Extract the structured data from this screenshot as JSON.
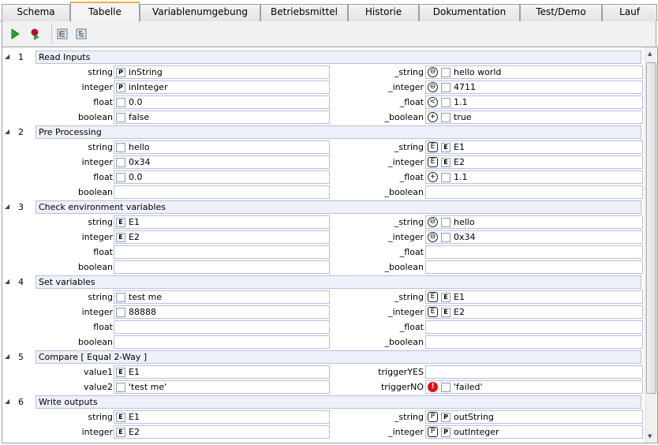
{
  "tabs": [
    {
      "label": "Schema"
    },
    {
      "label": "Tabelle",
      "selected": true
    },
    {
      "label": "Variablenumgebung"
    },
    {
      "label": "Betriebsmittel"
    },
    {
      "label": "Historie"
    },
    {
      "label": "Dokumentation"
    },
    {
      "label": "Test/Demo"
    },
    {
      "label": "Lauf"
    }
  ],
  "toolbar": {
    "icons": [
      "run-icon",
      "debug-icon",
      "expand-all-icon",
      "collapse-all-icon"
    ]
  },
  "colors": {
    "group_header_bg": "#eef0fa",
    "field_border": "#b8c0dc",
    "selected_tab_accent": "#f0b040",
    "error": "#e01010"
  },
  "groups": [
    {
      "num": "1",
      "title": "Read Inputs",
      "rows": [
        {
          "l": {
            "label": "string",
            "marker": "P",
            "value": "inString"
          },
          "r": {
            "label": "_string",
            "op": "equals",
            "marker": "",
            "value": "hello world"
          }
        },
        {
          "l": {
            "label": "integer",
            "marker": "P",
            "value": "inInteger"
          },
          "r": {
            "label": "_integer",
            "op": "equals",
            "marker": "",
            "value": "4711"
          }
        },
        {
          "l": {
            "label": "float",
            "marker": "",
            "value": "0.0"
          },
          "r": {
            "label": "_float",
            "op": "less",
            "marker": "",
            "value": "1.1"
          }
        },
        {
          "l": {
            "label": "boolean",
            "marker": "",
            "value": "false"
          },
          "r": {
            "label": "_boolean",
            "op": "plus",
            "marker": "",
            "value": "true"
          }
        }
      ]
    },
    {
      "num": "2",
      "title": "Pre Processing",
      "rows": [
        {
          "l": {
            "label": "string",
            "marker": "",
            "value": "hello"
          },
          "r": {
            "label": "_string",
            "op": "assign-env",
            "marker": "E",
            "value": "E1"
          }
        },
        {
          "l": {
            "label": "integer",
            "marker": "",
            "value": "0x34"
          },
          "r": {
            "label": "_integer",
            "op": "assign-env",
            "marker": "E",
            "value": "E2"
          }
        },
        {
          "l": {
            "label": "float",
            "marker": "",
            "value": "0.0"
          },
          "r": {
            "label": "_float",
            "op": "plus",
            "marker": "",
            "value": "1.1"
          }
        },
        {
          "l": {
            "label": "boolean"
          },
          "r": {
            "label": "_boolean"
          }
        }
      ]
    },
    {
      "num": "3",
      "title": "Check environment variables",
      "rows": [
        {
          "l": {
            "label": "string",
            "marker": "E",
            "value": "E1"
          },
          "r": {
            "label": "_string",
            "op": "equals",
            "marker": "",
            "value": "hello"
          }
        },
        {
          "l": {
            "label": "integer",
            "marker": "E",
            "value": "E2"
          },
          "r": {
            "label": "_integer",
            "op": "equals",
            "marker": "",
            "value": "0x34"
          }
        },
        {
          "l": {
            "label": "float"
          },
          "r": {
            "label": "_float"
          }
        },
        {
          "l": {
            "label": "boolean"
          },
          "r": {
            "label": "_boolean"
          }
        }
      ]
    },
    {
      "num": "4",
      "title": "Set variables",
      "rows": [
        {
          "l": {
            "label": "string",
            "marker": "",
            "value": "test me"
          },
          "r": {
            "label": "_string",
            "op": "assign-env",
            "marker": "E",
            "value": "E1"
          }
        },
        {
          "l": {
            "label": "integer",
            "marker": "",
            "value": "88888"
          },
          "r": {
            "label": "_integer",
            "op": "assign-env",
            "marker": "E",
            "value": "E2"
          }
        },
        {
          "l": {
            "label": "float"
          },
          "r": {
            "label": "_float"
          }
        },
        {
          "l": {
            "label": "boolean"
          },
          "r": {
            "label": "_boolean"
          }
        }
      ]
    },
    {
      "num": "5",
      "title": "Compare [ Equal 2-Way ]",
      "rows": [
        {
          "l": {
            "label": "value1",
            "marker": "E",
            "value": "E1"
          },
          "r": {
            "label": "triggerYES"
          }
        },
        {
          "l": {
            "label": "value2",
            "marker": "",
            "value": "'test me'"
          },
          "r": {
            "label": "triggerNO",
            "op": "error",
            "marker": "",
            "value": "'failed'"
          }
        }
      ]
    },
    {
      "num": "6",
      "title": "Write outputs",
      "rows": [
        {
          "l": {
            "label": "string",
            "marker": "E",
            "value": "E1"
          },
          "r": {
            "label": "_string",
            "op": "assign-param",
            "marker": "P",
            "value": "outString"
          }
        },
        {
          "l": {
            "label": "integer",
            "marker": "E",
            "value": "E2"
          },
          "r": {
            "label": "_integer",
            "op": "assign-param",
            "marker": "P",
            "value": "outInteger"
          }
        }
      ]
    }
  ]
}
